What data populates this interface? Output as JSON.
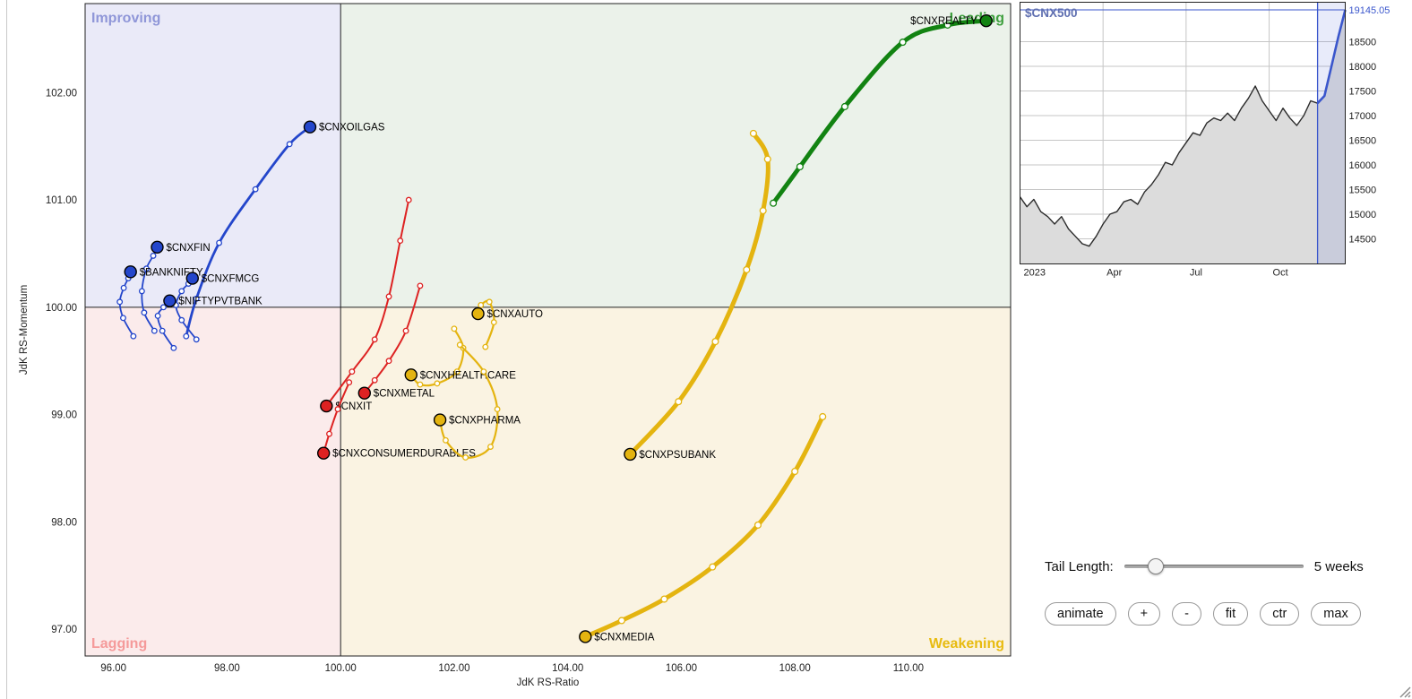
{
  "controls": {
    "tail_label": "Tail Length:",
    "tail_value": "5 weeks",
    "slider_position_pct": 17,
    "buttons": [
      "animate",
      "+",
      "-",
      "fit",
      "ctr",
      "max"
    ]
  },
  "chart_data": [
    {
      "type": "scatter",
      "name": "relative-rotation-graph",
      "xlabel": "JdK RS-Ratio",
      "ylabel": "JdK RS-Momentum",
      "xlim": [
        95.5,
        111.8
      ],
      "ylim": [
        96.75,
        102.83
      ],
      "xticks": [
        96,
        98,
        100,
        102,
        104,
        106,
        108,
        110
      ],
      "xtick_labels": [
        "96.00",
        "98.00",
        "100.00",
        "102.00",
        "104.00",
        "106.00",
        "108.00",
        "110.00"
      ],
      "yticks": [
        97,
        98,
        99,
        100,
        101,
        102
      ],
      "ytick_labels": [
        "97.00",
        "98.00",
        "99.00",
        "100.00",
        "101.00",
        "102.00"
      ],
      "center_x": 100,
      "center_y": 100,
      "quadrants": [
        {
          "label": "Improving",
          "text_color": "#8f96d8",
          "bg": "#eaeaf8",
          "corner": "top-left"
        },
        {
          "label": "Leading",
          "text_color": "#3fa03f",
          "bg": "#ebf2ea",
          "corner": "top-right"
        },
        {
          "label": "Lagging",
          "text_color": "#f59a9a",
          "bg": "#fbebeb",
          "corner": "bottom-left"
        },
        {
          "label": "Weakening",
          "text_color": "#e8bb10",
          "bg": "#faf3e2",
          "corner": "bottom-right"
        }
      ],
      "series": [
        {
          "name": "$CNXOILGAS",
          "color": "#2446cb",
          "width": 2.8,
          "label_side": "right",
          "points": [
            [
              97.28,
              99.73
            ],
            [
              97.46,
              100.08
            ],
            [
              97.86,
              100.6
            ],
            [
              98.5,
              101.1
            ],
            [
              99.1,
              101.52
            ],
            [
              99.46,
              101.68
            ]
          ]
        },
        {
          "name": "$CNXFIN",
          "color": "#2446cb",
          "width": 1.8,
          "label_side": "right",
          "points": [
            [
              96.72,
              99.78
            ],
            [
              96.54,
              99.95
            ],
            [
              96.5,
              100.15
            ],
            [
              96.58,
              100.36
            ],
            [
              96.7,
              100.48
            ],
            [
              96.77,
              100.56
            ]
          ]
        },
        {
          "name": "$BANKNIFTY",
          "color": "#2446cb",
          "width": 1.8,
          "label_side": "right",
          "points": [
            [
              96.35,
              99.73
            ],
            [
              96.17,
              99.9
            ],
            [
              96.11,
              100.05
            ],
            [
              96.18,
              100.18
            ],
            [
              96.26,
              100.27
            ],
            [
              96.3,
              100.33
            ]
          ]
        },
        {
          "name": "$CNXFMCG",
          "color": "#2446cb",
          "width": 1.8,
          "label_side": "right",
          "points": [
            [
              97.46,
              99.7
            ],
            [
              97.2,
              99.88
            ],
            [
              97.1,
              100.02
            ],
            [
              97.2,
              100.15
            ],
            [
              97.32,
              100.22
            ],
            [
              97.39,
              100.27
            ]
          ]
        },
        {
          "name": "$NIFTYPVTBANK",
          "color": "#2446cb",
          "width": 1.8,
          "label_side": "right",
          "points": [
            [
              97.06,
              99.62
            ],
            [
              96.86,
              99.78
            ],
            [
              96.78,
              99.92
            ],
            [
              96.88,
              100.0
            ],
            [
              96.99,
              100.06
            ]
          ]
        },
        {
          "name": "$CNXMETAL",
          "color": "#dd2222",
          "width": 2.0,
          "label_side": "right",
          "points": [
            [
              101.4,
              100.2
            ],
            [
              101.15,
              99.78
            ],
            [
              100.85,
              99.5
            ],
            [
              100.6,
              99.32
            ],
            [
              100.42,
              99.2
            ]
          ]
        },
        {
          "name": "$CNXIT",
          "color": "#dd2222",
          "width": 2.0,
          "label_side": "right",
          "points": [
            [
              101.2,
              101.0
            ],
            [
              101.05,
              100.62
            ],
            [
              100.85,
              100.1
            ],
            [
              100.6,
              99.7
            ],
            [
              100.2,
              99.4
            ],
            [
              99.75,
              99.08
            ]
          ]
        },
        {
          "name": "$CNXCONSUMERDURABLES",
          "color": "#dd2222",
          "width": 2.0,
          "label_side": "right",
          "points": [
            [
              100.15,
              99.3
            ],
            [
              99.95,
              99.05
            ],
            [
              99.8,
              98.82
            ],
            [
              99.7,
              98.64
            ]
          ]
        },
        {
          "name": "$CNXAUTO",
          "color": "#e4b410",
          "width": 2.2,
          "label_side": "right",
          "points": [
            [
              102.55,
              99.63
            ],
            [
              102.7,
              99.86
            ],
            [
              102.62,
              100.05
            ],
            [
              102.47,
              100.02
            ],
            [
              102.42,
              99.94
            ]
          ]
        },
        {
          "name": "$CNXHEALTHCARE",
          "color": "#e4b410",
          "width": 2.2,
          "label_side": "right",
          "points": [
            [
              102.0,
              99.8
            ],
            [
              102.16,
              99.62
            ],
            [
              102.05,
              99.4
            ],
            [
              101.7,
              99.29
            ],
            [
              101.4,
              99.28
            ],
            [
              101.24,
              99.37
            ]
          ]
        },
        {
          "name": "$CNXPHARMA",
          "color": "#e4b410",
          "width": 2.2,
          "label_side": "right",
          "points": [
            [
              102.1,
              99.65
            ],
            [
              102.52,
              99.4
            ],
            [
              102.76,
              99.05
            ],
            [
              102.64,
              98.7
            ],
            [
              102.2,
              98.6
            ],
            [
              101.85,
              98.76
            ],
            [
              101.75,
              98.95
            ]
          ]
        },
        {
          "name": "$CNXPSUBANK",
          "color": "#e4b410",
          "width": 5,
          "label_side": "right",
          "points": [
            [
              107.27,
              101.62
            ],
            [
              107.52,
              101.38
            ],
            [
              107.44,
              100.9
            ],
            [
              107.15,
              100.35
            ],
            [
              106.6,
              99.68
            ],
            [
              105.95,
              99.12
            ],
            [
              105.1,
              98.63
            ]
          ]
        },
        {
          "name": "$CNXMEDIA",
          "color": "#e4b410",
          "width": 5,
          "label_side": "right",
          "points": [
            [
              108.49,
              98.98
            ],
            [
              108.0,
              98.47
            ],
            [
              107.35,
              97.97
            ],
            [
              106.55,
              97.58
            ],
            [
              105.7,
              97.28
            ],
            [
              104.95,
              97.08
            ],
            [
              104.31,
              96.93
            ]
          ]
        },
        {
          "name": "$CNXREALTY",
          "color": "#128312",
          "width": 5,
          "label_side": "left",
          "points": [
            [
              107.62,
              100.97
            ],
            [
              108.09,
              101.31
            ],
            [
              108.88,
              101.87
            ],
            [
              109.9,
              102.47
            ],
            [
              110.69,
              102.63
            ],
            [
              111.37,
              102.67
            ]
          ]
        }
      ]
    },
    {
      "type": "area",
      "name": "benchmark-price-inset",
      "symbol": "$CNX500",
      "symbol_color": "#5f6fb0",
      "last_price_label": "19145.05",
      "last_value": 19145.05,
      "line_color": "#2b2b2b",
      "fill_color": "#dcdcdc",
      "highlight_color": "#3a56cc",
      "ylim": [
        13990,
        19300
      ],
      "yticks": [
        14500,
        15000,
        15500,
        16000,
        16500,
        17000,
        17500,
        18000,
        18500
      ],
      "x_labels": [
        {
          "label": "2023",
          "index": 0
        },
        {
          "label": "Apr",
          "index": 12
        },
        {
          "label": "Jul",
          "index": 24
        },
        {
          "label": "Oct",
          "index": 36
        }
      ],
      "highlight_from": 43,
      "values": [
        15350,
        15150,
        15300,
        15050,
        14950,
        14800,
        14950,
        14700,
        14550,
        14400,
        14350,
        14550,
        14800,
        15000,
        15050,
        15250,
        15300,
        15200,
        15450,
        15600,
        15800,
        16050,
        16000,
        16250,
        16450,
        16650,
        16600,
        16850,
        16950,
        16900,
        17050,
        16900,
        17150,
        17350,
        17600,
        17300,
        17100,
        16900,
        17150,
        16950,
        16800,
        17000,
        17300,
        17250,
        17400,
        18000,
        18600,
        19145.05
      ]
    }
  ]
}
